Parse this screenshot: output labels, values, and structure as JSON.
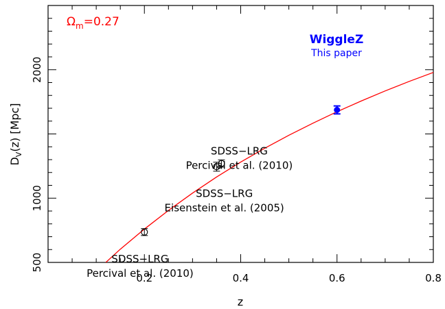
{
  "chart_data": {
    "type": "scatter",
    "title": "",
    "xlabel": "z",
    "ylabel_main": "D",
    "ylabel_sub": "V",
    "ylabel_rest": "(z)  [Mpc]",
    "xlim": [
      0.0,
      0.8
    ],
    "ylim": [
      500,
      2500
    ],
    "xticks_major": [
      0.2,
      0.4,
      0.6,
      0.8
    ],
    "xtick_labels": [
      "0.2",
      "0.4",
      "0.6",
      "0.8"
    ],
    "yticks_major": [
      500,
      1000,
      1500,
      2000
    ],
    "ytick_labels": [
      "500",
      "1000",
      "",
      "2000"
    ],
    "model": {
      "label_main": "Ω",
      "label_sub": "m",
      "label_rest": "=0.27",
      "color": "#ff0000",
      "curve": [
        [
          0.12,
          500
        ],
        [
          0.15,
          603
        ],
        [
          0.2,
          760
        ],
        [
          0.25,
          905
        ],
        [
          0.3,
          1040
        ],
        [
          0.35,
          1165
        ],
        [
          0.4,
          1281
        ],
        [
          0.45,
          1389
        ],
        [
          0.5,
          1490
        ],
        [
          0.55,
          1584
        ],
        [
          0.6,
          1673
        ],
        [
          0.65,
          1756
        ],
        [
          0.7,
          1835
        ],
        [
          0.75,
          1909
        ],
        [
          0.8,
          1979
        ]
      ]
    },
    "series": [
      {
        "name": "SDSS-LRG",
        "points": [
          {
            "x": 0.2,
            "y": 736,
            "err": 27
          },
          {
            "x": 0.35,
            "y": 1245,
            "err": 35
          },
          {
            "x": 0.36,
            "y": 1270,
            "err": 28
          }
        ],
        "color": "#000000",
        "marker": "open-circle"
      },
      {
        "name": "WiggleZ",
        "points": [
          {
            "x": 0.6,
            "y": 1687,
            "err": 31
          }
        ],
        "color": "#0000ff",
        "marker": "filled-circle"
      }
    ],
    "annotations": [
      {
        "lines": [
          "SDSS−LRG",
          "Percival et al. (2010)"
        ],
        "x": 0.191,
        "y": 500
      },
      {
        "lines": [
          "SDSS−LRG",
          "Percival et al. (2010)"
        ],
        "x": 0.397,
        "y": 1340
      },
      {
        "lines": [
          "SDSS−LRG",
          "Eisenstein et al. (2005)"
        ],
        "x": 0.366,
        "y": 1010
      },
      {
        "lines": [
          "WiggleZ",
          "This paper"
        ],
        "x": 0.596,
        "y": 1815
      }
    ],
    "wigglez_label": "WiggleZ",
    "wigglez_sub": "This paper",
    "grid": false
  }
}
